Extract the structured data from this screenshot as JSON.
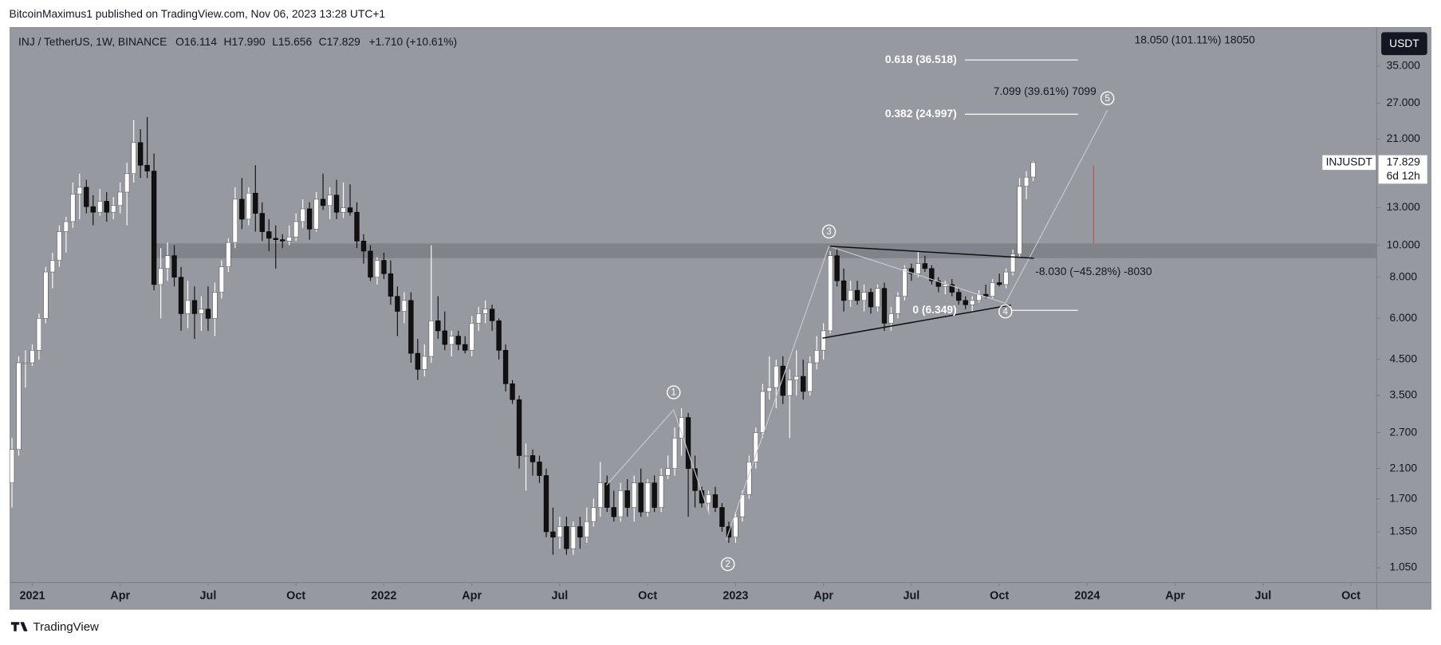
{
  "header": {
    "publisher": "BitcoinMaximus1 published on TradingView.com, Nov 06, 2023 13:28 UTC+1"
  },
  "footer": {
    "brand": "TradingView"
  },
  "currency_button": "USDT",
  "chart_data": {
    "type": "candlestick",
    "title": "INJ / TetherUS, 1W, BINANCE",
    "legend": {
      "o_key": "O",
      "o": "16.114",
      "h_key": "H",
      "h": "17.990",
      "l_key": "L",
      "l": "15.656",
      "c_key": "C",
      "c": "17.829",
      "change": "+1.710 (+10.61%)"
    },
    "symbol_tag": "INJUSDT",
    "last_price_label": "17.829",
    "countdown": "6d 12h",
    "log_scale": true,
    "grid": false,
    "up_color": "#ffffff",
    "down_color": "#111111",
    "ylim": [
      0.947,
      45.8
    ],
    "yticks": [
      {
        "value": 35,
        "label": "35.000"
      },
      {
        "value": 27,
        "label": "27.000"
      },
      {
        "value": 21,
        "label": "21.000"
      },
      {
        "value": 13,
        "label": "13.000"
      },
      {
        "value": 10,
        "label": "10.000"
      },
      {
        "value": 8,
        "label": "8.000"
      },
      {
        "value": 6,
        "label": "6.000"
      },
      {
        "value": 4.5,
        "label": "4.500"
      },
      {
        "value": 3.5,
        "label": "3.500"
      },
      {
        "value": 2.7,
        "label": "2.700"
      },
      {
        "value": 2.1,
        "label": "2.100"
      },
      {
        "value": 1.7,
        "label": "1.700"
      },
      {
        "value": 1.35,
        "label": "1.350"
      },
      {
        "value": 1.05,
        "label": "1.050"
      }
    ],
    "xlim": [
      -0.14,
      201.8
    ],
    "xticks": [
      {
        "value": 3,
        "label": "2021"
      },
      {
        "value": 16,
        "label": "Apr"
      },
      {
        "value": 29,
        "label": "Jul"
      },
      {
        "value": 42,
        "label": "Oct"
      },
      {
        "value": 55,
        "label": "2022"
      },
      {
        "value": 68,
        "label": "Apr"
      },
      {
        "value": 81,
        "label": "Jul"
      },
      {
        "value": 94,
        "label": "Oct"
      },
      {
        "value": 107,
        "label": "2023"
      },
      {
        "value": 120,
        "label": "Apr"
      },
      {
        "value": 133,
        "label": "Jul"
      },
      {
        "value": 146,
        "label": "Oct"
      },
      {
        "value": 159,
        "label": "2024"
      },
      {
        "value": 172,
        "label": "Apr"
      },
      {
        "value": 185,
        "label": "Jul"
      },
      {
        "value": 198,
        "label": "Oct"
      }
    ],
    "open": [
      1.9,
      2.4,
      4.4,
      4.4,
      4.8,
      6.0,
      8.3,
      9.0,
      11.0,
      11.8,
      14.3,
      15.0,
      13.1,
      12.6,
      13.6,
      12.6,
      13.2,
      14.5,
      16.5,
      20.5,
      17.5,
      16.8,
      7.6,
      8.5,
      9.3,
      8.0,
      6.2,
      6.8,
      6.2,
      6.4,
      6.0,
      7.2,
      8.6,
      10.2,
      13.8,
      12.0,
      14.4,
      12.5,
      11.0,
      10.5,
      10.4,
      10.3,
      10.6,
      11.8,
      12.9,
      11.2,
      13.8,
      13.2,
      14.2,
      12.6,
      13.0,
      12.6,
      10.3,
      9.6,
      8.0,
      9.0,
      8.2,
      7.0,
      6.3,
      6.8,
      4.7,
      4.2,
      4.6,
      5.9,
      5.5,
      5.0,
      5.3,
      5.0,
      4.8,
      5.8,
      6.2,
      6.4,
      5.9,
      4.8,
      3.8,
      3.4,
      2.3,
      2.3,
      2.2,
      2.0,
      1.35,
      1.3,
      1.4,
      1.2,
      1.4,
      1.3,
      1.45,
      1.6,
      1.9,
      1.6,
      1.5,
      1.8,
      1.6,
      1.9,
      1.55,
      1.9,
      1.6,
      2.0,
      2.1,
      2.6,
      3.0,
      2.1,
      1.8,
      1.65,
      1.75,
      1.6,
      1.4,
      1.3,
      1.5,
      1.75,
      2.2,
      2.7,
      3.6,
      3.7,
      4.3,
      3.5,
      3.9,
      4.0,
      3.6,
      4.4,
      4.8,
      5.5,
      9.3,
      7.8,
      6.8,
      7.3,
      6.8,
      7.2,
      6.5,
      7.4,
      5.8,
      6.2,
      7.0,
      8.5,
      8.2,
      8.8,
      8.5,
      7.8,
      7.5,
      7.6,
      7.2,
      6.8,
      6.6,
      6.8,
      7.1,
      7.0,
      7.7,
      7.6,
      8.3,
      9.4,
      15.1,
      16.114
    ],
    "high": [
      2.6,
      4.6,
      4.8,
      5.0,
      6.2,
      8.6,
      9.5,
      11.5,
      12.2,
      15.5,
      16.5,
      15.8,
      14.2,
      14.8,
      14.5,
      14.0,
      15.5,
      17.8,
      24.0,
      22.5,
      24.5,
      19.0,
      9.8,
      10.2,
      10.0,
      8.6,
      7.8,
      7.5,
      7.0,
      7.5,
      7.7,
      9.0,
      10.5,
      15.0,
      16.0,
      15.0,
      17.5,
      13.5,
      12.0,
      11.5,
      10.8,
      11.5,
      12.5,
      13.8,
      13.5,
      14.5,
      16.5,
      15.0,
      15.8,
      15.5,
      15.3,
      13.5,
      10.8,
      10.0,
      9.2,
      9.5,
      9.0,
      7.5,
      7.2,
      7.2,
      5.2,
      5.0,
      10.0,
      7.0,
      6.3,
      5.5,
      5.5,
      5.3,
      6.1,
      6.5,
      6.8,
      6.6,
      6.0,
      5.0,
      3.9,
      3.5,
      2.5,
      2.4,
      2.3,
      2.1,
      1.6,
      1.5,
      1.5,
      1.45,
      1.5,
      1.6,
      1.7,
      2.2,
      2.0,
      1.8,
      1.9,
      1.95,
      2.0,
      2.1,
      1.95,
      2.0,
      2.1,
      2.3,
      2.8,
      3.2,
      3.1,
      2.3,
      1.85,
      1.8,
      1.85,
      1.65,
      1.45,
      1.55,
      1.8,
      2.3,
      2.8,
      3.8,
      4.6,
      4.5,
      4.6,
      4.2,
      4.8,
      4.5,
      4.6,
      5.3,
      5.8,
      9.6,
      9.8,
      8.5,
      7.8,
      7.8,
      7.6,
      7.4,
      7.6,
      7.7,
      6.5,
      7.2,
      8.7,
      8.8,
      9.6,
      9.3,
      8.7,
      8.0,
      7.8,
      7.9,
      7.4,
      7.0,
      7.0,
      7.3,
      7.6,
      7.9,
      8.2,
      8.5,
      9.7,
      16.0,
      16.8,
      17.99
    ],
    "low": [
      1.6,
      2.3,
      3.7,
      4.3,
      4.5,
      5.8,
      7.4,
      8.6,
      9.5,
      11.3,
      12.0,
      12.5,
      11.5,
      12.3,
      11.8,
      12.0,
      12.5,
      11.5,
      15.5,
      16.0,
      16.0,
      7.3,
      6.0,
      7.8,
      7.5,
      5.5,
      5.6,
      5.2,
      5.5,
      5.5,
      5.3,
      6.9,
      8.3,
      9.8,
      11.2,
      11.5,
      11.0,
      10.3,
      9.6,
      8.5,
      9.8,
      10.0,
      10.3,
      11.3,
      10.4,
      11.0,
      12.8,
      12.0,
      12.0,
      12.1,
      12.3,
      9.8,
      8.8,
      7.8,
      7.6,
      7.9,
      6.6,
      5.3,
      5.8,
      4.4,
      3.9,
      4.0,
      4.4,
      5.2,
      4.8,
      4.6,
      4.8,
      4.7,
      4.6,
      5.5,
      5.8,
      5.5,
      4.5,
      3.6,
      3.3,
      2.1,
      1.8,
      2.0,
      1.9,
      1.3,
      1.15,
      1.2,
      1.15,
      1.15,
      1.2,
      1.25,
      1.4,
      1.5,
      1.55,
      1.45,
      1.45,
      1.5,
      1.45,
      1.5,
      1.5,
      1.55,
      1.55,
      1.95,
      2.0,
      2.3,
      1.5,
      1.6,
      1.6,
      1.55,
      1.55,
      1.35,
      1.25,
      1.25,
      1.45,
      1.7,
      2.1,
      2.6,
      3.4,
      3.2,
      3.3,
      2.6,
      3.5,
      3.4,
      3.5,
      4.2,
      4.5,
      5.4,
      7.5,
      6.3,
      6.5,
      6.6,
      6.3,
      6.2,
      6.3,
      5.5,
      5.5,
      6.0,
      6.8,
      7.8,
      8.0,
      8.3,
      7.6,
      7.2,
      7.1,
      7.0,
      6.6,
      6.4,
      6.3,
      6.7,
      6.9,
      6.9,
      7.5,
      7.4,
      8.1,
      9.2,
      13.8,
      15.656
    ],
    "close": [
      2.4,
      4.4,
      4.4,
      4.8,
      6.0,
      8.3,
      9.0,
      11.0,
      11.8,
      14.3,
      15.0,
      13.1,
      12.6,
      13.6,
      12.6,
      13.2,
      14.5,
      16.5,
      20.5,
      17.5,
      16.8,
      7.6,
      8.5,
      9.3,
      8.0,
      6.2,
      6.8,
      6.2,
      6.4,
      6.0,
      7.2,
      8.6,
      10.2,
      13.8,
      12.0,
      14.4,
      12.5,
      11.0,
      10.5,
      10.4,
      10.3,
      10.6,
      11.8,
      12.9,
      11.2,
      13.8,
      13.2,
      14.2,
      12.6,
      13.0,
      12.6,
      10.3,
      9.6,
      8.0,
      9.0,
      8.2,
      7.0,
      6.3,
      6.8,
      4.7,
      4.2,
      4.6,
      5.9,
      5.5,
      5.0,
      5.3,
      5.0,
      4.8,
      5.8,
      6.2,
      6.4,
      5.9,
      4.8,
      3.8,
      3.4,
      2.3,
      2.3,
      2.2,
      2.0,
      1.35,
      1.3,
      1.4,
      1.2,
      1.4,
      1.3,
      1.45,
      1.6,
      1.9,
      1.6,
      1.5,
      1.8,
      1.6,
      1.9,
      1.55,
      1.9,
      1.6,
      2.0,
      2.1,
      2.6,
      3.0,
      2.1,
      1.8,
      1.65,
      1.75,
      1.6,
      1.4,
      1.3,
      1.5,
      1.75,
      2.2,
      2.7,
      3.6,
      3.7,
      4.3,
      3.5,
      3.9,
      4.0,
      3.6,
      4.4,
      4.8,
      5.5,
      9.3,
      7.8,
      6.8,
      7.3,
      6.8,
      7.2,
      6.5,
      7.4,
      5.8,
      6.2,
      7.0,
      8.5,
      8.2,
      8.8,
      8.5,
      7.8,
      7.5,
      7.6,
      7.2,
      6.8,
      6.6,
      6.8,
      7.1,
      7.0,
      7.7,
      7.6,
      8.3,
      9.4,
      15.1,
      16.1,
      17.829
    ],
    "fib_levels": [
      {
        "value": 36.518,
        "label": "0.618 (36.518)"
      },
      {
        "value": 24.997,
        "label": "0.382 (24.997)"
      },
      {
        "value": 6.349,
        "label": "0 (6.349)"
      }
    ],
    "annotations": [
      "18.050 (101.11%) 18050",
      "7.099 (39.61%) 7099",
      "-8.030 (−45.28%) -8030"
    ],
    "waves": [
      "1",
      "2",
      "3",
      "4",
      "5"
    ]
  }
}
